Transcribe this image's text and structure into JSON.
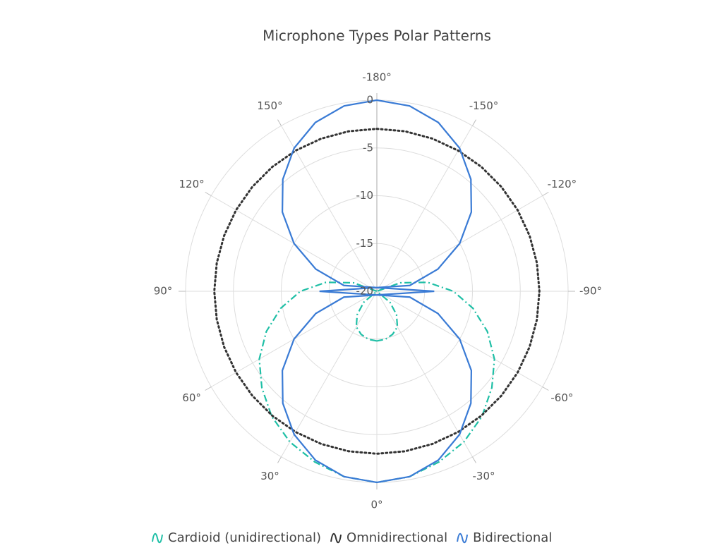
{
  "chart_data": {
    "type": "polar",
    "title": "Microphone Types Polar Patterns",
    "theta": [
      -180,
      -170,
      -160,
      -150,
      -140,
      -130,
      -120,
      -110,
      -100,
      -90,
      -80,
      -70,
      -60,
      -50,
      -40,
      -30,
      -20,
      -10,
      0,
      10,
      20,
      30,
      40,
      50,
      60,
      70,
      80,
      90,
      100,
      110,
      120,
      130,
      140,
      150,
      160,
      170,
      180
    ],
    "series": [
      {
        "name": "Cardioid (unidirectional)",
        "color": "#1fbfa6",
        "dash": "dashdot",
        "values": [
          -25.2,
          -25.1,
          -24.8,
          -24.3,
          -23.2,
          -21.8,
          -20,
          -17.4,
          -14.6,
          -12,
          -9.8,
          -7.7,
          -5.8,
          -4.3,
          -2.9,
          -1.8,
          -1.0,
          -0.3,
          0,
          -0.3,
          -1.0,
          -1.8,
          -2.9,
          -4.3,
          -5.8,
          -7.7,
          -9.8,
          -12,
          -14.6,
          -17.4,
          -20,
          -21.8,
          -23.2,
          -24.3,
          -24.8,
          -25.1,
          -25.2
        ]
      },
      {
        "name": "Omnidirectional",
        "color": "#333333",
        "dash": "dot",
        "values": [
          -3,
          -3,
          -3,
          -3,
          -3,
          -3,
          -3,
          -3,
          -3,
          -3,
          -3,
          -3,
          -3,
          -3,
          -3,
          -3,
          -3,
          -3,
          -3,
          -3,
          -3,
          -3,
          -3,
          -3,
          -3,
          -3,
          -3,
          -3,
          -3,
          -3,
          -3,
          -3,
          -3,
          -3,
          -3,
          -3,
          -3
        ]
      },
      {
        "name": "Bidirectional",
        "color": "#3a7bd5",
        "dash": "solid",
        "values": [
          0,
          -0.3,
          -1.2,
          -2.7,
          -4.7,
          -7.1,
          -10,
          -13.2,
          -16.5,
          -26,
          -16.5,
          -13.2,
          -10,
          -7.1,
          -4.7,
          -2.7,
          -1.2,
          -0.3,
          0,
          -0.3,
          -1.2,
          -2.7,
          -4.7,
          -7.1,
          -10,
          -13.2,
          -16.5,
          -26,
          -16.5,
          -13.2,
          -10,
          -7.1,
          -4.7,
          -2.7,
          -1.2,
          -0.3,
          0
        ]
      }
    ],
    "rlim": [
      -20,
      0
    ],
    "rticks": [
      -20,
      -15,
      -10,
      -5,
      0
    ],
    "thetaticks": [
      {
        "value": -180,
        "label": "-180°"
      },
      {
        "value": -150,
        "label": "-150°"
      },
      {
        "value": -120,
        "label": "-120°"
      },
      {
        "value": -90,
        "label": "-90°"
      },
      {
        "value": -60,
        "label": "-60°"
      },
      {
        "value": -30,
        "label": "-30°"
      },
      {
        "value": 0,
        "label": "0°"
      },
      {
        "value": 30,
        "label": "30°"
      },
      {
        "value": 60,
        "label": "60°"
      },
      {
        "value": 90,
        "label": "90°"
      },
      {
        "value": 120,
        "label": "120°"
      },
      {
        "value": 150,
        "label": "150°"
      }
    ],
    "grid": true,
    "legend": "bottom"
  }
}
